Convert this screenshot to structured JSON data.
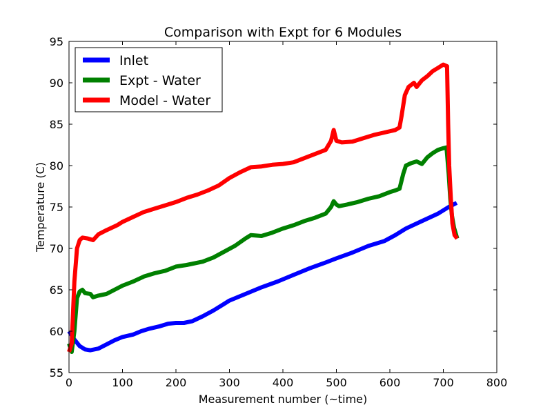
{
  "chart_data": {
    "type": "line",
    "title": "Comparison with Expt for 6 Modules",
    "xlabel": "Measurement number (~time)",
    "ylabel": "Temperature (C)",
    "xlim": [
      0,
      800
    ],
    "ylim": [
      55,
      95
    ],
    "xticks": [
      0,
      100,
      200,
      300,
      400,
      500,
      600,
      700,
      800
    ],
    "yticks": [
      55,
      60,
      65,
      70,
      75,
      80,
      85,
      90,
      95
    ],
    "grid": false,
    "legend_position": "top-left",
    "series": [
      {
        "name": "Inlet",
        "color": "#0000ff",
        "points": [
          [
            0,
            60
          ],
          [
            10,
            59
          ],
          [
            20,
            58.2
          ],
          [
            30,
            57.8
          ],
          [
            40,
            57.7
          ],
          [
            55,
            57.9
          ],
          [
            70,
            58.4
          ],
          [
            85,
            58.9
          ],
          [
            100,
            59.3
          ],
          [
            120,
            59.6
          ],
          [
            135,
            60
          ],
          [
            150,
            60.3
          ],
          [
            170,
            60.6
          ],
          [
            185,
            60.9
          ],
          [
            200,
            61
          ],
          [
            215,
            61
          ],
          [
            230,
            61.2
          ],
          [
            250,
            61.8
          ],
          [
            270,
            62.5
          ],
          [
            290,
            63.3
          ],
          [
            300,
            63.7
          ],
          [
            330,
            64.5
          ],
          [
            360,
            65.3
          ],
          [
            390,
            66
          ],
          [
            420,
            66.8
          ],
          [
            450,
            67.6
          ],
          [
            480,
            68.3
          ],
          [
            500,
            68.8
          ],
          [
            530,
            69.5
          ],
          [
            560,
            70.3
          ],
          [
            590,
            70.9
          ],
          [
            610,
            71.6
          ],
          [
            630,
            72.4
          ],
          [
            660,
            73.3
          ],
          [
            690,
            74.2
          ],
          [
            710,
            75
          ],
          [
            725,
            75.5
          ]
        ]
      },
      {
        "name": "Expt - Water",
        "color": "#008000",
        "points": [
          [
            0,
            58.5
          ],
          [
            5,
            57.5
          ],
          [
            10,
            60
          ],
          [
            15,
            64
          ],
          [
            20,
            64.8
          ],
          [
            25,
            65
          ],
          [
            30,
            64.6
          ],
          [
            40,
            64.5
          ],
          [
            45,
            64.1
          ],
          [
            55,
            64.3
          ],
          [
            70,
            64.5
          ],
          [
            85,
            65
          ],
          [
            100,
            65.5
          ],
          [
            120,
            66
          ],
          [
            140,
            66.6
          ],
          [
            160,
            67
          ],
          [
            180,
            67.3
          ],
          [
            200,
            67.8
          ],
          [
            220,
            68
          ],
          [
            250,
            68.4
          ],
          [
            270,
            68.9
          ],
          [
            290,
            69.6
          ],
          [
            310,
            70.3
          ],
          [
            330,
            71.2
          ],
          [
            340,
            71.6
          ],
          [
            360,
            71.5
          ],
          [
            380,
            71.9
          ],
          [
            400,
            72.4
          ],
          [
            420,
            72.8
          ],
          [
            440,
            73.3
          ],
          [
            460,
            73.7
          ],
          [
            480,
            74.2
          ],
          [
            490,
            75
          ],
          [
            495,
            75.7
          ],
          [
            500,
            75.3
          ],
          [
            505,
            75.1
          ],
          [
            520,
            75.3
          ],
          [
            540,
            75.6
          ],
          [
            560,
            76
          ],
          [
            580,
            76.3
          ],
          [
            600,
            76.8
          ],
          [
            610,
            77
          ],
          [
            618,
            77.2
          ],
          [
            625,
            79
          ],
          [
            630,
            80
          ],
          [
            640,
            80.3
          ],
          [
            650,
            80.5
          ],
          [
            660,
            80.2
          ],
          [
            670,
            81
          ],
          [
            680,
            81.5
          ],
          [
            690,
            81.9
          ],
          [
            700,
            82.1
          ],
          [
            706,
            82.2
          ],
          [
            710,
            79
          ],
          [
            713,
            76
          ],
          [
            716,
            74
          ],
          [
            720,
            72.5
          ],
          [
            726,
            71.2
          ]
        ]
      },
      {
        "name": "Model - Water",
        "color": "#ff0000",
        "points": [
          [
            0,
            57.5
          ],
          [
            5,
            58.5
          ],
          [
            10,
            66
          ],
          [
            15,
            70
          ],
          [
            20,
            71
          ],
          [
            25,
            71.3
          ],
          [
            35,
            71.2
          ],
          [
            45,
            71
          ],
          [
            55,
            71.7
          ],
          [
            70,
            72.2
          ],
          [
            90,
            72.8
          ],
          [
            100,
            73.2
          ],
          [
            120,
            73.8
          ],
          [
            140,
            74.4
          ],
          [
            160,
            74.8
          ],
          [
            180,
            75.2
          ],
          [
            200,
            75.6
          ],
          [
            220,
            76.1
          ],
          [
            240,
            76.5
          ],
          [
            260,
            77
          ],
          [
            280,
            77.6
          ],
          [
            300,
            78.5
          ],
          [
            320,
            79.2
          ],
          [
            340,
            79.8
          ],
          [
            360,
            79.9
          ],
          [
            380,
            80.1
          ],
          [
            400,
            80.2
          ],
          [
            420,
            80.4
          ],
          [
            440,
            80.9
          ],
          [
            460,
            81.4
          ],
          [
            480,
            81.9
          ],
          [
            490,
            83
          ],
          [
            495,
            84.3
          ],
          [
            500,
            83
          ],
          [
            510,
            82.8
          ],
          [
            530,
            82.9
          ],
          [
            550,
            83.3
          ],
          [
            570,
            83.7
          ],
          [
            590,
            84
          ],
          [
            610,
            84.3
          ],
          [
            618,
            84.6
          ],
          [
            622,
            86
          ],
          [
            628,
            88.5
          ],
          [
            635,
            89.5
          ],
          [
            645,
            90
          ],
          [
            650,
            89.5
          ],
          [
            660,
            90.3
          ],
          [
            670,
            90.8
          ],
          [
            680,
            91.4
          ],
          [
            690,
            91.8
          ],
          [
            700,
            92.2
          ],
          [
            707,
            92
          ],
          [
            709,
            85
          ],
          [
            711,
            80
          ],
          [
            714,
            76
          ],
          [
            717,
            73
          ],
          [
            721,
            71.6
          ],
          [
            726,
            71.2
          ]
        ]
      }
    ]
  }
}
